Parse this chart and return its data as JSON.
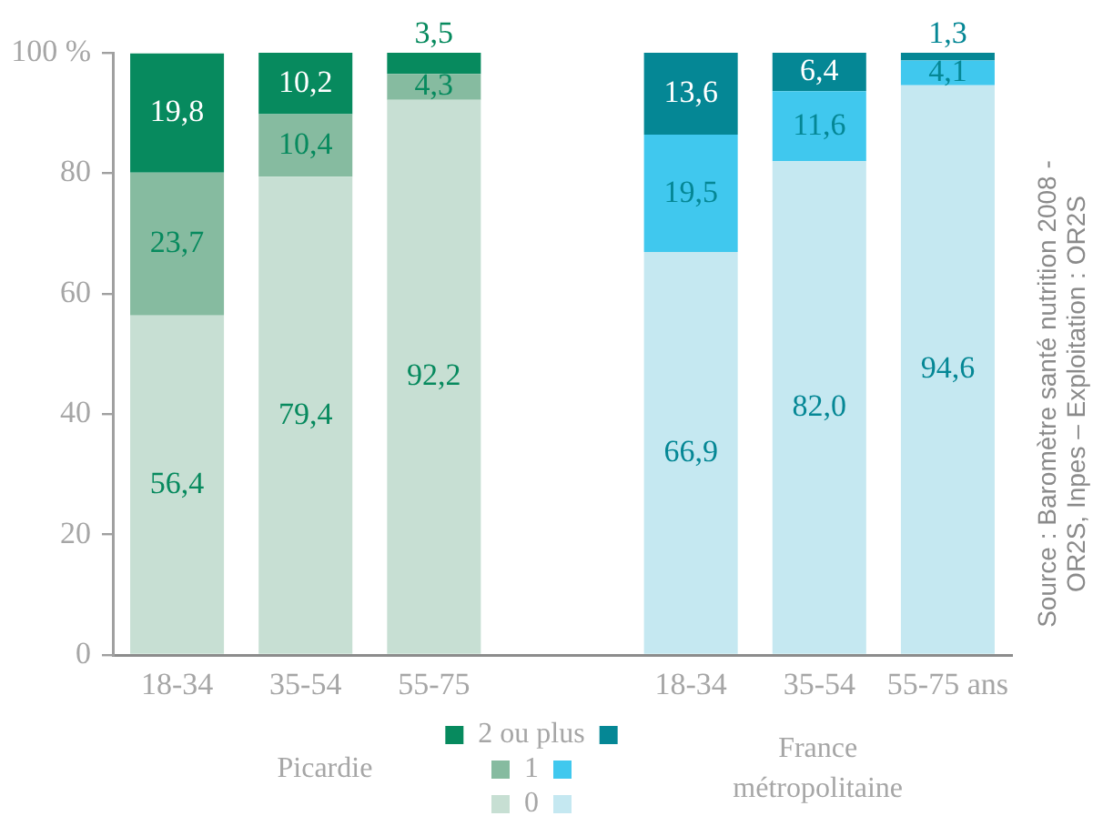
{
  "chart_data": {
    "type": "bar",
    "stacked": true,
    "categories": [
      "18-34",
      "35-54",
      "55-75",
      null,
      "18-34",
      "35-54",
      "55-75 ans"
    ],
    "series": [
      {
        "name": "0",
        "colors": [
          "#c7dfd3",
          "#c7dfd3",
          "#c7dfd3",
          null,
          "#c5e8f1",
          "#c5e8f1",
          "#c5e8f1"
        ],
        "values": [
          56.4,
          79.4,
          92.2,
          null,
          66.9,
          82.0,
          94.6
        ],
        "value_labels": [
          "56,4",
          "79,4",
          "92,2",
          null,
          "66,9",
          "82,0",
          "94,6"
        ]
      },
      {
        "name": "1",
        "colors": [
          "#86bba0",
          "#86bba0",
          "#86bba0",
          null,
          "#40c8ee",
          "#40c8ee",
          "#40c8ee"
        ],
        "values": [
          23.7,
          10.4,
          4.3,
          null,
          19.5,
          11.6,
          4.1
        ],
        "value_labels": [
          "23,7",
          "10,4",
          "4,3",
          null,
          "19,5",
          "11,6",
          "4,1"
        ]
      },
      {
        "name": "2 ou plus",
        "colors": [
          "#078a5e",
          "#078a5e",
          "#078a5e",
          null,
          "#058795",
          "#058795",
          "#058795"
        ],
        "values": [
          19.8,
          10.2,
          3.5,
          null,
          13.6,
          6.4,
          1.3
        ],
        "value_labels": [
          "19,8",
          "10,2",
          "3,5",
          null,
          "13,6",
          "6,4",
          "1,3"
        ]
      }
    ],
    "ylim": [
      0,
      100
    ],
    "yticks": [
      0,
      20,
      40,
      60,
      80,
      {
        "value": 100,
        "label": "100 %"
      }
    ],
    "legend": "bottom",
    "annotations": [
      "Picardie",
      "France métropolitaine",
      "Source : Baromètre santé nutrition 2008 - OR2S, Inpes – Exploitation : OR2S"
    ]
  }
}
